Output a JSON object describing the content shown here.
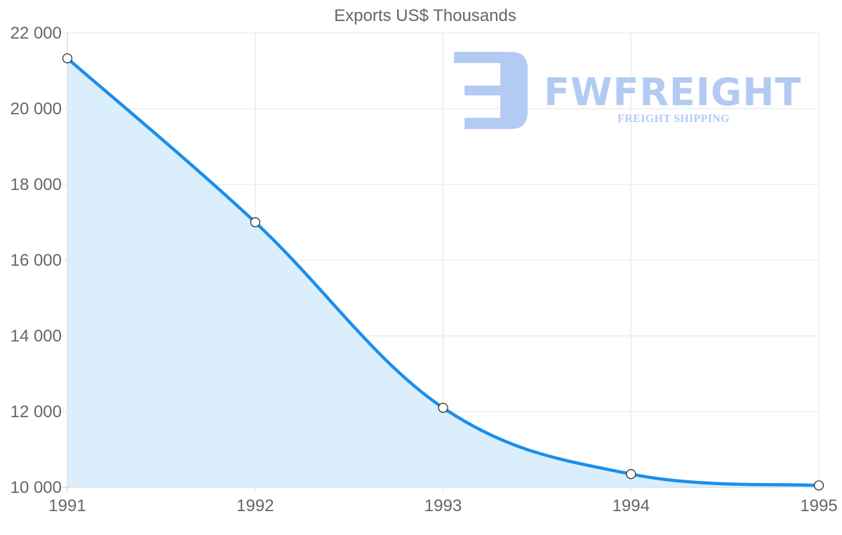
{
  "chart_data": {
    "type": "area",
    "title": "Exports US$ Thousands",
    "xlabel": "",
    "ylabel": "",
    "categories": [
      "1991",
      "1992",
      "1993",
      "1994",
      "1995"
    ],
    "series": [
      {
        "name": "Exports US$ Thousands",
        "values": [
          21330,
          17000,
          12100,
          10350,
          10050
        ],
        "color": "#1a8fec",
        "fill": "#d9edfc"
      }
    ],
    "y_ticks": [
      "10 000",
      "12 000",
      "14 000",
      "16 000",
      "18 000",
      "20 000",
      "22 000"
    ],
    "ylim": [
      10000,
      22000
    ],
    "grid": true,
    "legend": "none"
  },
  "watermark": {
    "brand": "FWFREIGHT",
    "tagline": "FREIGHT SHIPPING",
    "color": "#b3cbf3"
  }
}
